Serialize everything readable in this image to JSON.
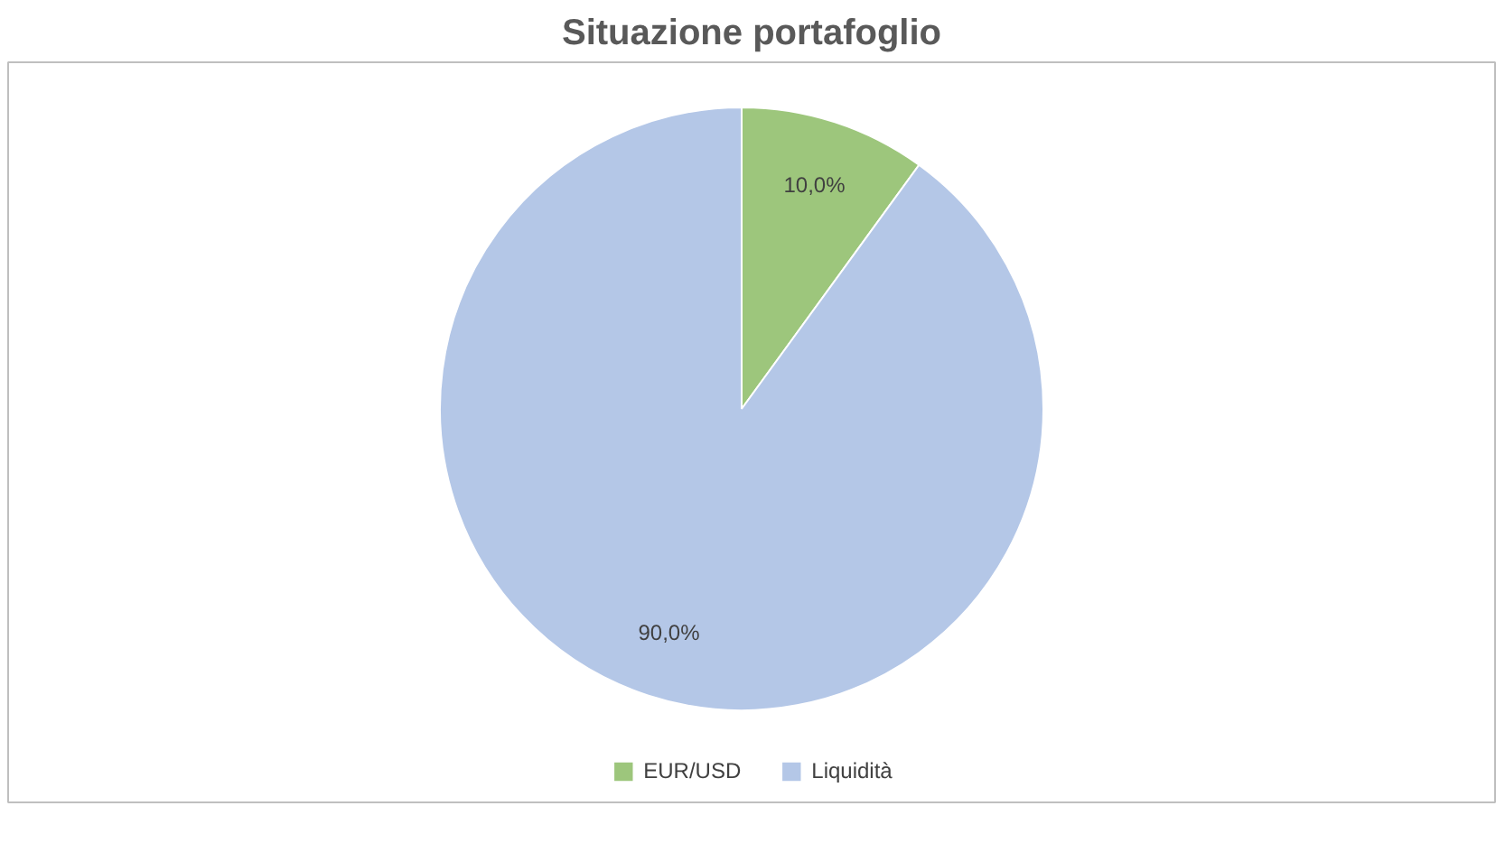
{
  "chart_data": {
    "type": "pie",
    "title": "Situazione portafoglio",
    "categories": [
      "EUR/USD",
      "Liquidità"
    ],
    "values": [
      10,
      90
    ],
    "colors": [
      "#9dc67c",
      "#b4c7e7"
    ],
    "value_labels": [
      "10,0%",
      "90,0%"
    ],
    "legend": "bottom"
  }
}
